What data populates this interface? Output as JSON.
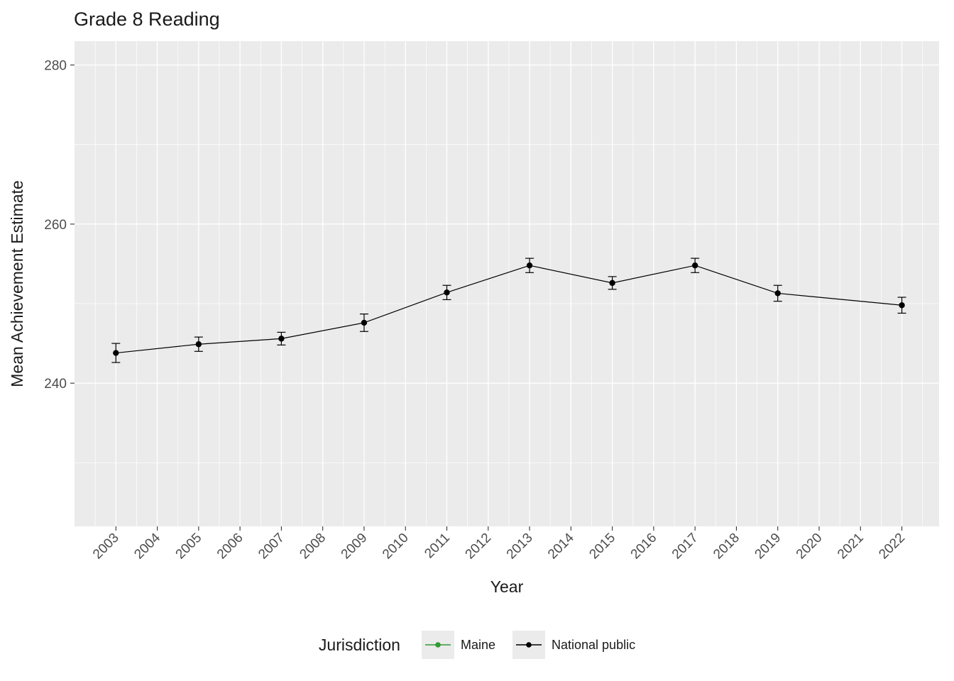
{
  "chart_data": {
    "type": "line",
    "title": "Grade 8 Reading",
    "xlabel": "Year",
    "ylabel": "Mean Achievement Estimate",
    "x_ticks": [
      2003,
      2004,
      2005,
      2006,
      2007,
      2008,
      2009,
      2010,
      2011,
      2012,
      2013,
      2014,
      2015,
      2016,
      2017,
      2018,
      2019,
      2020,
      2021,
      2022
    ],
    "xlim": [
      2002,
      2022.9
    ],
    "y_ticks": [
      240,
      260,
      280
    ],
    "ylim": [
      222,
      283
    ],
    "grid": true,
    "legend": {
      "title": "Jurisdiction",
      "position": "bottom",
      "entries": [
        {
          "label": "Maine",
          "color": "#339933"
        },
        {
          "label": "National public",
          "color": "#000000"
        }
      ]
    },
    "series": [
      {
        "name": "National public",
        "color": "#000000",
        "marker": "point",
        "x": [
          2003,
          2005,
          2007,
          2009,
          2011,
          2013,
          2015,
          2017,
          2019,
          2022
        ],
        "values": [
          243.8,
          244.9,
          245.6,
          247.6,
          251.4,
          254.8,
          252.6,
          254.8,
          251.3,
          249.8
        ],
        "error": [
          1.2,
          0.9,
          0.8,
          1.1,
          0.9,
          0.9,
          0.8,
          0.9,
          1.0,
          1.0
        ]
      }
    ],
    "colors": {
      "panel_background": "#EBEBEB",
      "gridline": "#FFFFFF",
      "tick_label": "#4D4D4D",
      "axis_title": "#1A1A1A",
      "tick_mark": "#333333",
      "legend_key_background": "#EBEBEB"
    }
  }
}
